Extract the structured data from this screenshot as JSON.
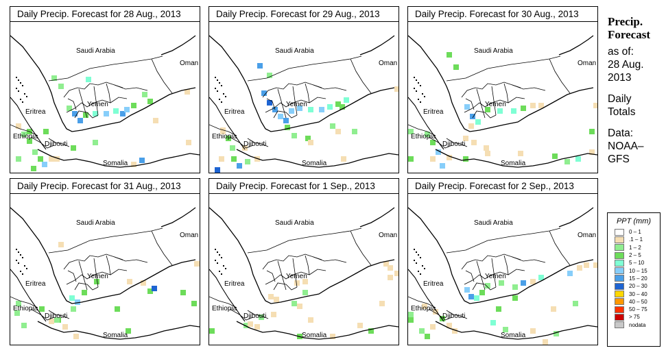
{
  "panels": [
    {
      "title": "Daily Precip. Forecast for  28 Aug., 2013",
      "labels": [
        "Saudi Arabia",
        "Oman",
        "Yemen",
        "Eritrea",
        "Ethiopia",
        "Djibouti",
        "Somalia"
      ]
    },
    {
      "title": "Daily Precip. Forecast for  29 Aug., 2013",
      "labels": [
        "Saudi Arabia",
        "Oman",
        "Yemen",
        "Eritrea",
        "Ethiopia",
        "Djibouti",
        "Somalia"
      ]
    },
    {
      "title": "Daily Precip. Forecast for  30 Aug., 2013",
      "labels": [
        "Saudi Arabia",
        "Oman",
        "Yemen",
        "Eritrea",
        "Ethiopia",
        "Djibouti",
        "Somalia"
      ]
    },
    {
      "title": "Daily Precip. Forecast for  31 Aug., 2013",
      "labels": [
        "Saudi Arabia",
        "Oman",
        "Yemen",
        "Eritrea",
        "Ethiopia",
        "Djibouti",
        "Somalia"
      ]
    },
    {
      "title": "Daily Precip. Forecast for  1 Sep., 2013",
      "labels": [
        "Saudi Arabia",
        "Oman",
        "Yemen",
        "Eritrea",
        "Ethiopia",
        "Djibouti",
        "Somalia"
      ]
    },
    {
      "title": "Daily Precip. Forecast for  2 Sep., 2013",
      "labels": [
        "Saudi Arabia",
        "Oman",
        "Yemen",
        "Eritrea",
        "Ethiopia",
        "Djibouti",
        "Somalia"
      ]
    }
  ],
  "sidebar": {
    "title_line1": "Precip.",
    "title_line2": "Forecast",
    "asof_line1": "as of:",
    "asof_line2": "28 Aug.",
    "asof_line3": "2013",
    "totals_line1": "Daily",
    "totals_line2": "Totals",
    "source_line1": "Data:",
    "source_line2": "NOAA–",
    "source_line3": "GFS"
  },
  "legend": {
    "title": "PPT (mm)",
    "items": [
      {
        "label": "0 – 1",
        "color": "#ffffff"
      },
      {
        "label": ".1 – 1",
        "color": "#f5deb3"
      },
      {
        "label": "1 – 2",
        "color": "#90ee90"
      },
      {
        "label": "2 – 5",
        "color": "#6ddc5a"
      },
      {
        "label": "5 – 10",
        "color": "#7fffd4"
      },
      {
        "label": "10 – 15",
        "color": "#87cefa"
      },
      {
        "label": "15 – 20",
        "color": "#4a9fe8"
      },
      {
        "label": "20 – 30",
        "color": "#1e64d2"
      },
      {
        "label": "30 – 40",
        "color": "#ffd700"
      },
      {
        "label": "40 – 50",
        "color": "#ff9900"
      },
      {
        "label": "50 – 75",
        "color": "#ff3300"
      },
      {
        "label": "> 75",
        "color": "#cc0000"
      },
      {
        "label": "nodata",
        "color": "#c8c8c8"
      }
    ]
  }
}
